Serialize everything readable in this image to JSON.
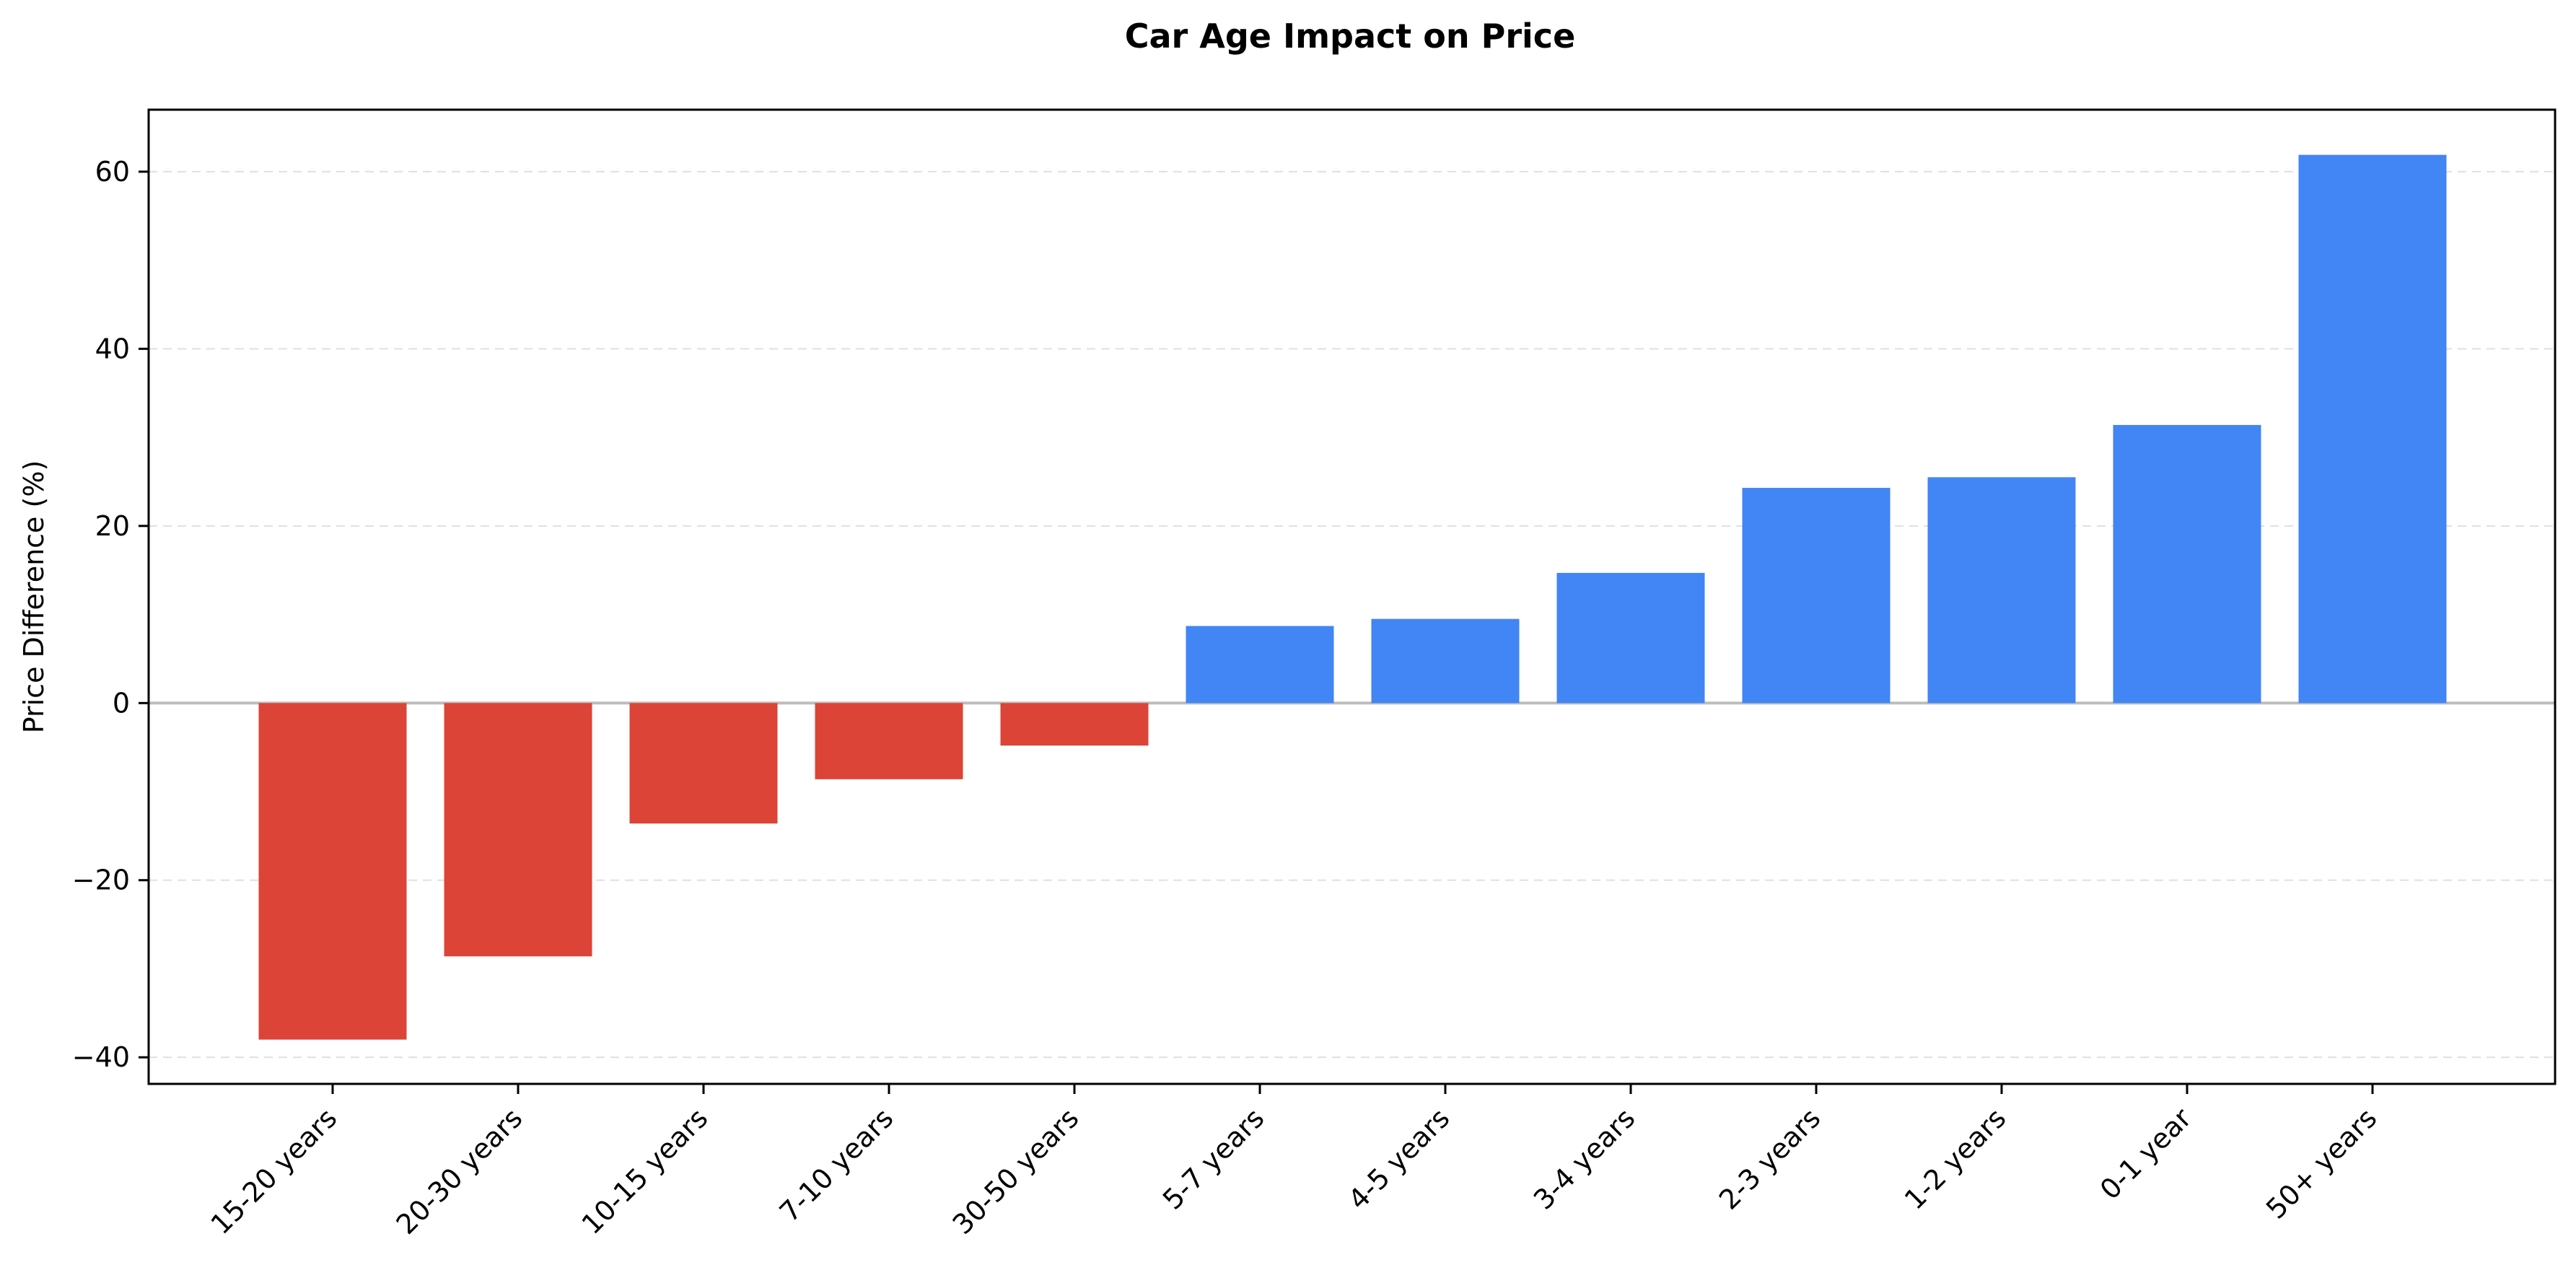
{
  "chart_data": {
    "type": "bar",
    "title": "Car Age Impact on Price",
    "xlabel": "",
    "ylabel": "Price Difference (%)",
    "categories": [
      "15-20 years",
      "20-30 years",
      "10-15 years",
      "7-10 years",
      "30-50 years",
      "5-7 years",
      "4-5 years",
      "3-4 years",
      "2-3 years",
      "1-2 years",
      "0-1 year",
      "50+ years"
    ],
    "values": [
      -38.0,
      -28.6,
      -13.6,
      -8.6,
      -4.8,
      8.7,
      9.5,
      14.7,
      24.3,
      25.5,
      31.4,
      61.9
    ],
    "ylim": [
      -43,
      67
    ],
    "yticks": [
      -40,
      -20,
      0,
      20,
      40,
      60
    ],
    "ytick_labels": [
      "−40",
      "−20",
      "0",
      "20",
      "40",
      "60"
    ],
    "colors": {
      "negative": "#db4437",
      "positive": "#4285f4",
      "zero_line": "#bdbdbd",
      "grid": "#e0e0e0"
    },
    "grid": "y-dashed",
    "legend": "none"
  }
}
